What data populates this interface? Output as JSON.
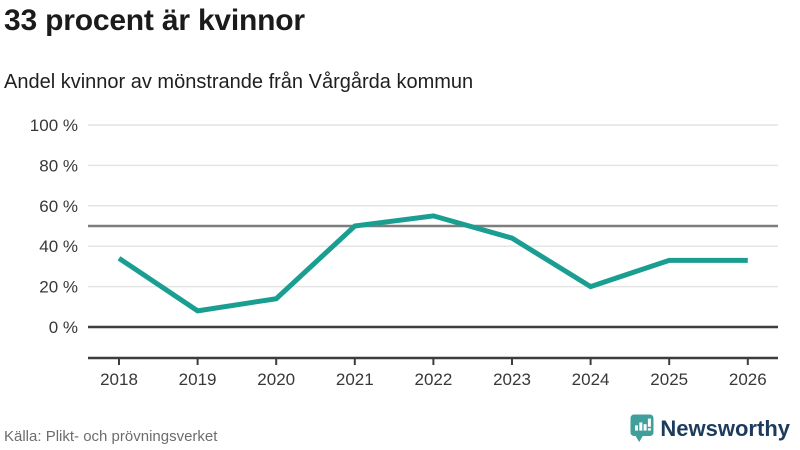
{
  "header": {
    "title": "33 procent är kvinnor",
    "subtitle": "Andel kvinnor av mönstrande från Vårgårda kommun"
  },
  "chart_data": {
    "type": "line",
    "title": "33 procent är kvinnor",
    "subtitle": "Andel kvinnor av mönstrande från Vårgårda kommun",
    "x": [
      2018,
      2019,
      2020,
      2021,
      2022,
      2023,
      2024,
      2025,
      2026
    ],
    "series": [
      {
        "name": "Andel kvinnor av mönstrande",
        "values": [
          34,
          8,
          14,
          50,
          55,
          44,
          20,
          33,
          33
        ]
      }
    ],
    "xlabel": "",
    "ylabel": "",
    "ylim": [
      0,
      100
    ],
    "y_ticks": [
      0,
      20,
      40,
      60,
      80,
      100
    ],
    "y_tick_suffix": " %",
    "reference_line": 50,
    "grid": true,
    "legend": "none",
    "line_color": "#1a9e91"
  },
  "footer": {
    "source": "Källa: Plikt- och prövningsverket",
    "brand": "Newsworthy"
  },
  "icons": {
    "logo": "newsworthy-bar-chart-speech-bubble-icon"
  },
  "colors": {
    "line": "#1a9e91",
    "reference_line": "#7d7d7d",
    "axis": "#3d3d3d",
    "gridline": "#e4e4e4",
    "title_text": "#1b1b1b",
    "source_text": "#6d6d6d",
    "logo_teal": "#3fa09b",
    "logo_navy": "#1d3b5c"
  }
}
